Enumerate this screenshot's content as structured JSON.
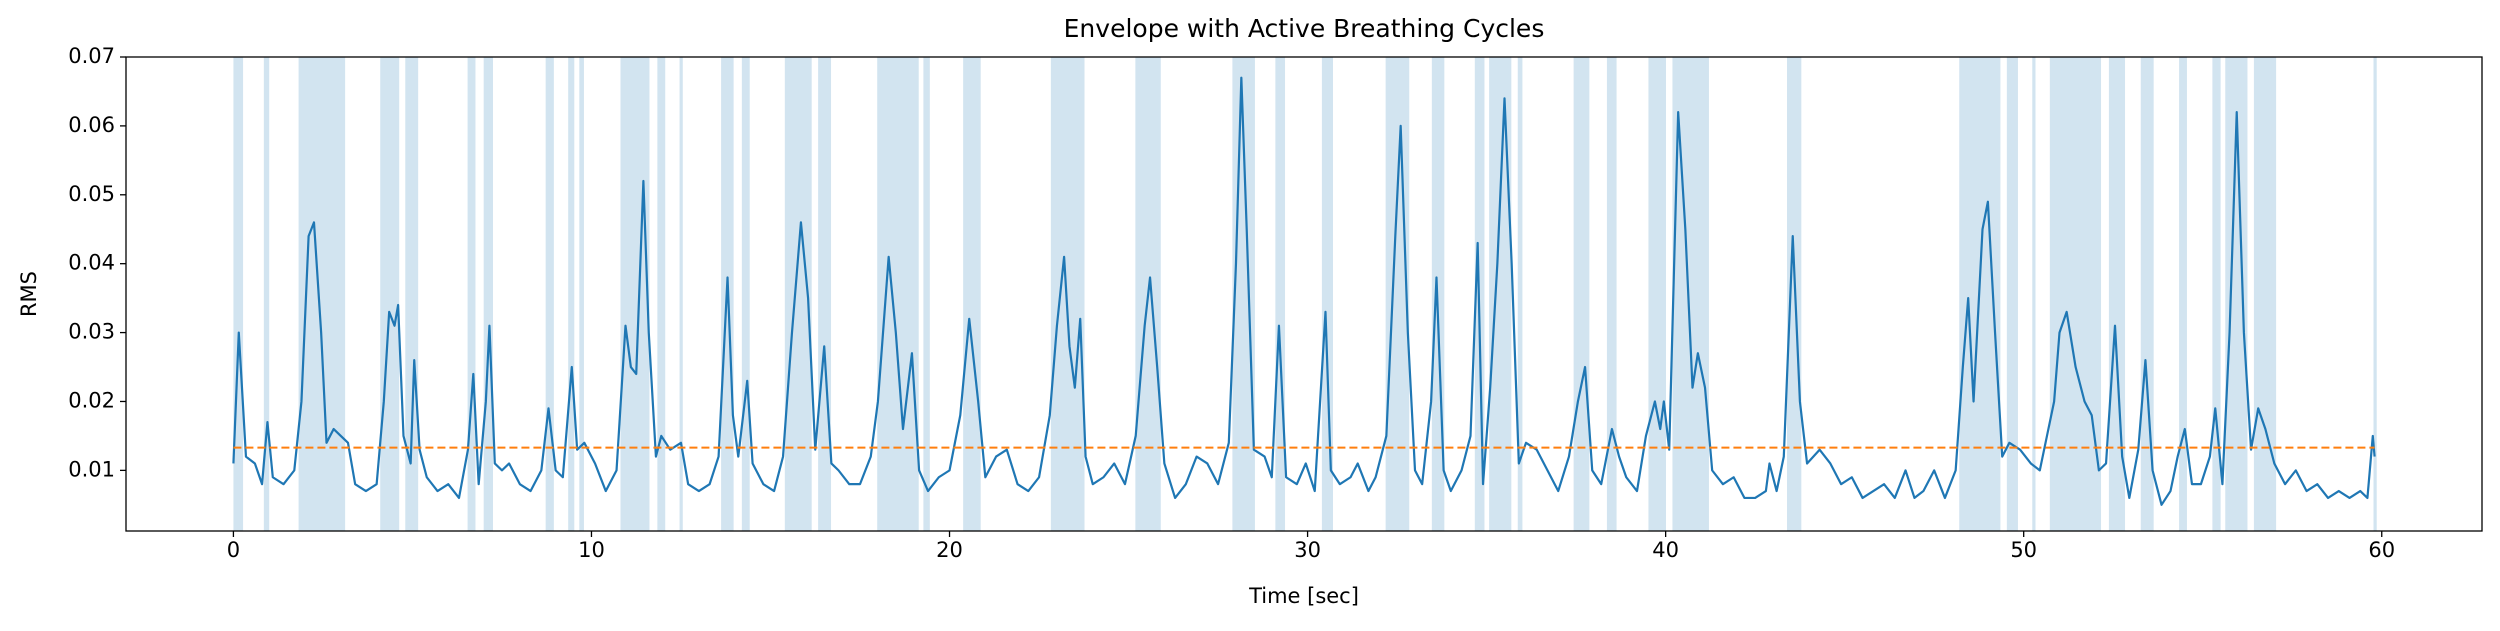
{
  "chart_data": {
    "type": "line",
    "title": "Envelope with Active Breathing Cycles",
    "xlabel": "Time [sec]",
    "ylabel": "RMS",
    "xlim": [
      -3.0,
      62.8
    ],
    "ylim": [
      0.0012,
      0.07
    ],
    "xticks": [
      0,
      10,
      20,
      30,
      40,
      50,
      60
    ],
    "yticks": [
      0.01,
      0.02,
      0.03,
      0.04,
      0.05,
      0.06,
      0.07
    ],
    "span_color": "#1f77b4",
    "span_opacity": 0.2,
    "spans": [
      [
        0.0,
        0.27
      ],
      [
        0.85,
        1.0
      ],
      [
        1.82,
        3.12
      ],
      [
        4.1,
        4.63
      ],
      [
        4.8,
        5.16
      ],
      [
        6.54,
        6.76
      ],
      [
        6.99,
        7.25
      ],
      [
        8.72,
        8.95
      ],
      [
        9.35,
        9.52
      ],
      [
        9.66,
        9.79
      ],
      [
        10.81,
        11.62
      ],
      [
        11.84,
        12.06
      ],
      [
        12.46,
        12.55
      ],
      [
        13.62,
        13.97
      ],
      [
        14.2,
        14.42
      ],
      [
        15.4,
        16.15
      ],
      [
        16.33,
        16.69
      ],
      [
        17.98,
        19.14
      ],
      [
        19.27,
        19.45
      ],
      [
        20.38,
        20.87
      ],
      [
        22.83,
        23.77
      ],
      [
        25.19,
        25.9
      ],
      [
        27.9,
        28.53
      ],
      [
        29.1,
        29.37
      ],
      [
        30.4,
        30.71
      ],
      [
        32.18,
        32.84
      ],
      [
        33.47,
        33.82
      ],
      [
        34.67,
        34.94
      ],
      [
        35.07,
        35.69
      ],
      [
        35.87,
        36.0
      ],
      [
        37.43,
        37.87
      ],
      [
        38.36,
        38.63
      ],
      [
        39.52,
        40.01
      ],
      [
        40.19,
        41.21
      ],
      [
        43.39,
        43.79
      ],
      [
        48.2,
        49.35
      ],
      [
        49.53,
        49.84
      ],
      [
        50.24,
        50.33
      ],
      [
        50.73,
        52.16
      ],
      [
        52.38,
        52.83
      ],
      [
        53.27,
        53.63
      ],
      [
        54.34,
        54.56
      ],
      [
        55.27,
        55.5
      ],
      [
        55.63,
        56.25
      ],
      [
        56.43,
        57.05
      ],
      [
        59.77,
        59.86
      ]
    ],
    "series": [
      {
        "color": "#1f77b4",
        "dashed": false,
        "x": [
          0,
          0.15,
          0.35,
          0.6,
          0.8,
          0.95,
          1.1,
          1.4,
          1.7,
          1.9,
          2.1,
          2.25,
          2.45,
          2.6,
          2.8,
          3.0,
          3.2,
          3.4,
          3.7,
          4.0,
          4.2,
          4.35,
          4.5,
          4.6,
          4.75,
          4.95,
          5.05,
          5.2,
          5.4,
          5.7,
          6.0,
          6.3,
          6.55,
          6.7,
          6.85,
          7.05,
          7.15,
          7.3,
          7.5,
          7.7,
          8.0,
          8.3,
          8.6,
          8.8,
          9.0,
          9.2,
          9.45,
          9.6,
          9.8,
          10.1,
          10.4,
          10.7,
          10.95,
          11.1,
          11.25,
          11.45,
          11.6,
          11.8,
          11.95,
          12.2,
          12.5,
          12.7,
          13.0,
          13.3,
          13.55,
          13.8,
          13.95,
          14.1,
          14.35,
          14.5,
          14.8,
          15.1,
          15.35,
          15.6,
          15.85,
          16.05,
          16.25,
          16.5,
          16.7,
          16.9,
          17.2,
          17.5,
          17.8,
          18.0,
          18.3,
          18.5,
          18.7,
          18.95,
          19.15,
          19.4,
          19.7,
          20.0,
          20.3,
          20.55,
          20.8,
          21.0,
          21.3,
          21.6,
          21.9,
          22.2,
          22.5,
          22.8,
          23.0,
          23.2,
          23.35,
          23.5,
          23.65,
          23.8,
          24.0,
          24.3,
          24.6,
          24.9,
          25.2,
          25.45,
          25.6,
          25.8,
          26.0,
          26.3,
          26.6,
          26.9,
          27.2,
          27.5,
          27.8,
          28.0,
          28.15,
          28.3,
          28.5,
          28.8,
          29.0,
          29.2,
          29.4,
          29.7,
          29.95,
          30.2,
          30.5,
          30.65,
          30.9,
          31.2,
          31.4,
          31.7,
          31.9,
          32.2,
          32.45,
          32.6,
          32.8,
          33.0,
          33.2,
          33.45,
          33.6,
          33.8,
          34.0,
          34.3,
          34.55,
          34.75,
          34.9,
          35.1,
          35.3,
          35.5,
          35.7,
          35.9,
          36.1,
          36.4,
          36.7,
          37.0,
          37.3,
          37.55,
          37.75,
          37.95,
          38.2,
          38.5,
          38.7,
          38.9,
          39.2,
          39.45,
          39.7,
          39.85,
          39.95,
          40.1,
          40.35,
          40.55,
          40.75,
          40.9,
          41.1,
          41.3,
          41.6,
          41.9,
          42.2,
          42.5,
          42.8,
          42.9,
          43.1,
          43.3,
          43.55,
          43.75,
          43.95,
          44.3,
          44.6,
          44.9,
          45.2,
          45.5,
          45.8,
          46.1,
          46.4,
          46.7,
          46.95,
          47.2,
          47.5,
          47.8,
          48.1,
          48.3,
          48.45,
          48.6,
          48.85,
          49.0,
          49.2,
          49.4,
          49.6,
          49.9,
          50.2,
          50.45,
          50.65,
          50.85,
          51.0,
          51.2,
          51.45,
          51.7,
          51.9,
          52.1,
          52.3,
          52.55,
          52.75,
          52.95,
          53.2,
          53.4,
          53.6,
          53.85,
          54.1,
          54.3,
          54.5,
          54.7,
          54.95,
          55.2,
          55.35,
          55.55,
          55.75,
          55.95,
          56.15,
          56.35,
          56.55,
          56.75,
          57.0,
          57.3,
          57.6,
          57.9,
          58.2,
          58.5,
          58.8,
          59.1,
          59.4,
          59.6,
          59.75,
          59.8
        ],
        "values": [
          0.011,
          0.03,
          0.012,
          0.011,
          0.008,
          0.017,
          0.009,
          0.008,
          0.01,
          0.02,
          0.044,
          0.046,
          0.03,
          0.014,
          0.016,
          0.015,
          0.014,
          0.008,
          0.007,
          0.008,
          0.02,
          0.033,
          0.031,
          0.034,
          0.015,
          0.011,
          0.026,
          0.013,
          0.009,
          0.007,
          0.008,
          0.006,
          0.013,
          0.024,
          0.008,
          0.02,
          0.031,
          0.011,
          0.01,
          0.011,
          0.008,
          0.007,
          0.01,
          0.019,
          0.01,
          0.009,
          0.025,
          0.013,
          0.014,
          0.011,
          0.007,
          0.01,
          0.031,
          0.025,
          0.024,
          0.052,
          0.03,
          0.012,
          0.015,
          0.013,
          0.014,
          0.008,
          0.007,
          0.008,
          0.012,
          0.038,
          0.018,
          0.012,
          0.023,
          0.011,
          0.008,
          0.007,
          0.012,
          0.03,
          0.046,
          0.035,
          0.013,
          0.028,
          0.011,
          0.01,
          0.008,
          0.008,
          0.012,
          0.02,
          0.041,
          0.03,
          0.016,
          0.027,
          0.01,
          0.007,
          0.009,
          0.01,
          0.018,
          0.032,
          0.02,
          0.009,
          0.012,
          0.013,
          0.008,
          0.007,
          0.009,
          0.018,
          0.031,
          0.041,
          0.028,
          0.022,
          0.032,
          0.012,
          0.008,
          0.009,
          0.011,
          0.008,
          0.015,
          0.031,
          0.038,
          0.025,
          0.011,
          0.006,
          0.008,
          0.012,
          0.011,
          0.008,
          0.014,
          0.04,
          0.067,
          0.045,
          0.013,
          0.012,
          0.009,
          0.031,
          0.009,
          0.008,
          0.011,
          0.007,
          0.033,
          0.01,
          0.008,
          0.009,
          0.011,
          0.007,
          0.009,
          0.015,
          0.044,
          0.06,
          0.03,
          0.01,
          0.008,
          0.02,
          0.038,
          0.01,
          0.007,
          0.01,
          0.015,
          0.043,
          0.008,
          0.022,
          0.04,
          0.064,
          0.04,
          0.011,
          0.014,
          0.013,
          0.01,
          0.007,
          0.012,
          0.02,
          0.025,
          0.01,
          0.008,
          0.016,
          0.012,
          0.009,
          0.007,
          0.015,
          0.02,
          0.016,
          0.02,
          0.013,
          0.062,
          0.045,
          0.022,
          0.027,
          0.022,
          0.01,
          0.008,
          0.009,
          0.006,
          0.006,
          0.007,
          0.011,
          0.007,
          0.012,
          0.044,
          0.02,
          0.011,
          0.013,
          0.011,
          0.008,
          0.009,
          0.006,
          0.007,
          0.008,
          0.006,
          0.01,
          0.006,
          0.007,
          0.01,
          0.006,
          0.01,
          0.025,
          0.035,
          0.02,
          0.045,
          0.049,
          0.03,
          0.012,
          0.014,
          0.013,
          0.011,
          0.01,
          0.015,
          0.02,
          0.03,
          0.033,
          0.025,
          0.02,
          0.018,
          0.01,
          0.011,
          0.031,
          0.012,
          0.006,
          0.013,
          0.026,
          0.01,
          0.005,
          0.007,
          0.012,
          0.016,
          0.008,
          0.008,
          0.012,
          0.019,
          0.008,
          0.03,
          0.062,
          0.03,
          0.013,
          0.019,
          0.016,
          0.011,
          0.008,
          0.01,
          0.007,
          0.008,
          0.006,
          0.007,
          0.006,
          0.007,
          0.006,
          0.015,
          0.012
        ]
      },
      {
        "color": "#ff7f0e",
        "dashed": true,
        "x": [
          0,
          59.8
        ],
        "values": [
          0.0133,
          0.0133
        ]
      }
    ]
  }
}
